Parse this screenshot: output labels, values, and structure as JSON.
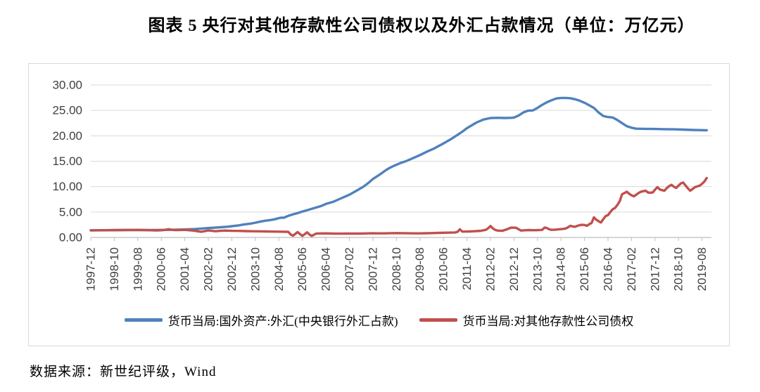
{
  "title": "图表 5  央行对其他存款性公司债权以及外汇占款情况（单位：万亿元）",
  "footer": {
    "source_label": "数据来源：新世纪评级，Wind"
  },
  "colors": {
    "series_blue": "#4F81BD",
    "series_red": "#C0504D",
    "gridline": "#D9D9D9",
    "axis_line": "#BFBFBF",
    "axis_text": "#3F3F3F",
    "chart_border": "#D9D9D9"
  },
  "chart_data": {
    "type": "line",
    "title": "央行对其他存款性公司债权以及外汇占款情况",
    "unit": "万亿元",
    "grid": true,
    "legend_position": "bottom",
    "y_axis": {
      "min": 0,
      "max": 30,
      "step": 5,
      "tick_labels": [
        "0.00",
        "5.00",
        "10.00",
        "15.00",
        "20.00",
        "25.00",
        "30.00"
      ]
    },
    "x_axis": {
      "start": "1997-12",
      "end": "2019-08",
      "tick_every_months": 10,
      "months_total": 264,
      "tick_labels": [
        "1997-12",
        "1998-10",
        "1999-08",
        "2000-06",
        "2001-04",
        "2002-02",
        "2002-12",
        "2003-10",
        "2004-08",
        "2005-06",
        "2006-04",
        "2007-02",
        "2007-12",
        "2008-10",
        "2009-08",
        "2010-06",
        "2011-04",
        "2012-02",
        "2012-12",
        "2013-10",
        "2014-08",
        "2015-06",
        "2016-04",
        "2017-02",
        "2017-12",
        "2018-10",
        "2019-08"
      ]
    },
    "series": [
      {
        "name": "货币当局:国外资产:外汇(中央银行外汇占款)",
        "color": "#4F81BD",
        "points_format": "[months_since_1997-12, value_trillion_yuan]",
        "points": [
          [
            0,
            1.39
          ],
          [
            6,
            1.42
          ],
          [
            10,
            1.45
          ],
          [
            15,
            1.45
          ],
          [
            20,
            1.45
          ],
          [
            25,
            1.46
          ],
          [
            30,
            1.48
          ],
          [
            34,
            1.5
          ],
          [
            38,
            1.55
          ],
          [
            40,
            1.58
          ],
          [
            44,
            1.65
          ],
          [
            47,
            1.74
          ],
          [
            50,
            1.85
          ],
          [
            53,
            1.93
          ],
          [
            55,
            2.0
          ],
          [
            58,
            2.1
          ],
          [
            60,
            2.21
          ],
          [
            63,
            2.38
          ],
          [
            65,
            2.55
          ],
          [
            68,
            2.72
          ],
          [
            70,
            2.9
          ],
          [
            72,
            3.1
          ],
          [
            74,
            3.28
          ],
          [
            76,
            3.4
          ],
          [
            78,
            3.55
          ],
          [
            80,
            3.8
          ],
          [
            81,
            3.9
          ],
          [
            82,
            3.87
          ],
          [
            84,
            4.25
          ],
          [
            86,
            4.55
          ],
          [
            88,
            4.8
          ],
          [
            90,
            5.1
          ],
          [
            93,
            5.5
          ],
          [
            96,
            5.9
          ],
          [
            98,
            6.2
          ],
          [
            100,
            6.6
          ],
          [
            103,
            7.0
          ],
          [
            106,
            7.6
          ],
          [
            108,
            8.0
          ],
          [
            110,
            8.4
          ],
          [
            113,
            9.2
          ],
          [
            116,
            10.0
          ],
          [
            118,
            10.7
          ],
          [
            120,
            11.5
          ],
          [
            123,
            12.4
          ],
          [
            126,
            13.4
          ],
          [
            128,
            13.9
          ],
          [
            130,
            14.3
          ],
          [
            132,
            14.7
          ],
          [
            134,
            15.0
          ],
          [
            137,
            15.6
          ],
          [
            140,
            16.2
          ],
          [
            143,
            16.9
          ],
          [
            146,
            17.5
          ],
          [
            148,
            18.0
          ],
          [
            150,
            18.5
          ],
          [
            153,
            19.3
          ],
          [
            156,
            20.2
          ],
          [
            158,
            20.8
          ],
          [
            160,
            21.5
          ],
          [
            164,
            22.6
          ],
          [
            167,
            23.2
          ],
          [
            170,
            23.5
          ],
          [
            173,
            23.55
          ],
          [
            176,
            23.5
          ],
          [
            179,
            23.55
          ],
          [
            180,
            23.6
          ],
          [
            182,
            24.0
          ],
          [
            184,
            24.6
          ],
          [
            186,
            24.95
          ],
          [
            188,
            25.0
          ],
          [
            190,
            25.5
          ],
          [
            192,
            26.1
          ],
          [
            194,
            26.6
          ],
          [
            196,
            27.0
          ],
          [
            198,
            27.35
          ],
          [
            200,
            27.45
          ],
          [
            202,
            27.45
          ],
          [
            204,
            27.4
          ],
          [
            206,
            27.2
          ],
          [
            208,
            26.9
          ],
          [
            210,
            26.5
          ],
          [
            212,
            26.0
          ],
          [
            214,
            25.5
          ],
          [
            216,
            24.6
          ],
          [
            218,
            23.9
          ],
          [
            220,
            23.7
          ],
          [
            222,
            23.6
          ],
          [
            224,
            23.1
          ],
          [
            226,
            22.5
          ],
          [
            228,
            21.9
          ],
          [
            230,
            21.6
          ],
          [
            232,
            21.4
          ],
          [
            236,
            21.38
          ],
          [
            240,
            21.35
          ],
          [
            244,
            21.3
          ],
          [
            248,
            21.28
          ],
          [
            252,
            21.22
          ],
          [
            256,
            21.15
          ],
          [
            262,
            21.1
          ]
        ]
      },
      {
        "name": "货币当局:对其他存款性公司债权",
        "color": "#C0504D",
        "points_format": "[months_since_1997-12, value_trillion_yuan]",
        "points": [
          [
            0,
            1.4
          ],
          [
            5,
            1.41
          ],
          [
            8,
            1.42
          ],
          [
            12,
            1.45
          ],
          [
            16,
            1.48
          ],
          [
            20,
            1.5
          ],
          [
            23,
            1.45
          ],
          [
            26,
            1.41
          ],
          [
            28,
            1.38
          ],
          [
            31,
            1.45
          ],
          [
            33,
            1.62
          ],
          [
            35,
            1.5
          ],
          [
            36,
            1.45
          ],
          [
            38,
            1.47
          ],
          [
            40,
            1.5
          ],
          [
            43,
            1.38
          ],
          [
            45,
            1.25
          ],
          [
            47,
            1.12
          ],
          [
            49,
            1.28
          ],
          [
            50,
            1.38
          ],
          [
            52,
            1.28
          ],
          [
            53,
            1.22
          ],
          [
            55,
            1.3
          ],
          [
            57,
            1.35
          ],
          [
            60,
            1.3
          ],
          [
            63,
            1.28
          ],
          [
            66,
            1.25
          ],
          [
            69,
            1.22
          ],
          [
            72,
            1.2
          ],
          [
            75,
            1.17
          ],
          [
            78,
            1.15
          ],
          [
            81,
            1.13
          ],
          [
            84,
            1.1
          ],
          [
            85,
            0.6
          ],
          [
            86,
            0.35
          ],
          [
            87,
            0.7
          ],
          [
            88,
            1.05
          ],
          [
            89,
            0.65
          ],
          [
            90,
            0.3
          ],
          [
            91,
            0.65
          ],
          [
            92,
            1.0
          ],
          [
            93,
            0.6
          ],
          [
            94,
            0.3
          ],
          [
            95,
            0.55
          ],
          [
            96,
            0.78
          ],
          [
            100,
            0.8
          ],
          [
            103,
            0.76
          ],
          [
            105,
            0.74
          ],
          [
            108,
            0.76
          ],
          [
            110,
            0.78
          ],
          [
            113,
            0.76
          ],
          [
            115,
            0.76
          ],
          [
            118,
            0.8
          ],
          [
            120,
            0.82
          ],
          [
            123,
            0.8
          ],
          [
            125,
            0.8
          ],
          [
            128,
            0.84
          ],
          [
            130,
            0.86
          ],
          [
            133,
            0.84
          ],
          [
            135,
            0.82
          ],
          [
            138,
            0.8
          ],
          [
            140,
            0.8
          ],
          [
            143,
            0.83
          ],
          [
            145,
            0.86
          ],
          [
            148,
            0.9
          ],
          [
            150,
            0.92
          ],
          [
            153,
            0.95
          ],
          [
            155,
            0.98
          ],
          [
            156,
            1.1
          ],
          [
            157,
            1.6
          ],
          [
            158,
            1.15
          ],
          [
            160,
            1.16
          ],
          [
            161,
            1.18
          ],
          [
            163,
            1.22
          ],
          [
            164,
            1.25
          ],
          [
            166,
            1.32
          ],
          [
            168,
            1.5
          ],
          [
            169,
            1.8
          ],
          [
            170,
            2.25
          ],
          [
            171,
            1.8
          ],
          [
            172,
            1.5
          ],
          [
            173,
            1.35
          ],
          [
            175,
            1.3
          ],
          [
            177,
            1.6
          ],
          [
            178,
            1.8
          ],
          [
            179,
            1.95
          ],
          [
            181,
            1.9
          ],
          [
            182,
            1.6
          ],
          [
            183,
            1.35
          ],
          [
            185,
            1.42
          ],
          [
            186,
            1.45
          ],
          [
            188,
            1.43
          ],
          [
            189,
            1.42
          ],
          [
            191,
            1.46
          ],
          [
            192,
            1.5
          ],
          [
            193,
            1.95
          ],
          [
            194,
            1.85
          ],
          [
            195,
            1.6
          ],
          [
            196,
            1.5
          ],
          [
            198,
            1.55
          ],
          [
            199,
            1.6
          ],
          [
            201,
            1.68
          ],
          [
            202,
            1.75
          ],
          [
            203,
            2.0
          ],
          [
            204,
            2.3
          ],
          [
            205,
            2.15
          ],
          [
            206,
            2.1
          ],
          [
            207,
            2.3
          ],
          [
            208,
            2.4
          ],
          [
            209,
            2.5
          ],
          [
            210,
            2.45
          ],
          [
            211,
            2.3
          ],
          [
            212,
            2.6
          ],
          [
            213,
            2.85
          ],
          [
            214,
            3.95
          ],
          [
            215,
            3.5
          ],
          [
            216,
            3.2
          ],
          [
            217,
            2.95
          ],
          [
            218,
            3.6
          ],
          [
            219,
            4.2
          ],
          [
            220,
            4.4
          ],
          [
            221,
            5.0
          ],
          [
            222,
            5.55
          ],
          [
            223,
            5.8
          ],
          [
            224,
            6.4
          ],
          [
            225,
            7.15
          ],
          [
            226,
            8.5
          ],
          [
            227,
            8.75
          ],
          [
            228,
            9.0
          ],
          [
            229,
            8.6
          ],
          [
            230,
            8.3
          ],
          [
            231,
            8.1
          ],
          [
            232,
            8.4
          ],
          [
            233,
            8.75
          ],
          [
            234,
            9.0
          ],
          [
            235,
            9.1
          ],
          [
            236,
            9.2
          ],
          [
            237,
            8.85
          ],
          [
            238,
            8.8
          ],
          [
            239,
            8.85
          ],
          [
            240,
            9.4
          ],
          [
            241,
            9.9
          ],
          [
            242,
            9.45
          ],
          [
            243,
            9.3
          ],
          [
            244,
            9.2
          ],
          [
            245,
            9.7
          ],
          [
            246,
            10.1
          ],
          [
            247,
            10.35
          ],
          [
            248,
            10.0
          ],
          [
            249,
            9.75
          ],
          [
            250,
            10.2
          ],
          [
            251,
            10.65
          ],
          [
            252,
            10.8
          ],
          [
            253,
            10.2
          ],
          [
            254,
            9.65
          ],
          [
            255,
            9.2
          ],
          [
            256,
            9.55
          ],
          [
            257,
            9.9
          ],
          [
            258,
            10.05
          ],
          [
            259,
            10.2
          ],
          [
            260,
            10.55
          ],
          [
            261,
            11.0
          ],
          [
            262,
            11.7
          ]
        ]
      }
    ]
  }
}
